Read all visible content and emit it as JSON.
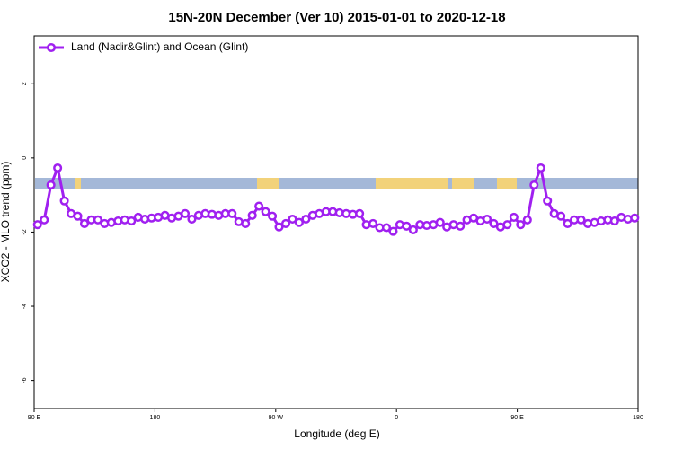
{
  "chart_data": {
    "type": "line",
    "title": "15N-20N December (Ver 10)   2015-01-01 to 2020-12-18",
    "xlabel": "Longitude (deg E)",
    "ylabel": "XCO2 - MLO trend (ppm)",
    "xlim": [
      90,
      540
    ],
    "xticks": [
      {
        "value": 90,
        "label": "90 E"
      },
      180,
      {
        "value": 270,
        "label": "90 W"
      },
      {
        "value": 360,
        "label": "0"
      },
      {
        "value": 450,
        "label": "90 E"
      },
      {
        "value": 540,
        "label": "180"
      }
    ],
    "ylim": [
      -6.76,
      3.29
    ],
    "yticks": [
      -6,
      -4,
      -2,
      0,
      2
    ],
    "legend": "top-left",
    "series": [
      {
        "name": "Land (Nadir&Glint) and Ocean (Glint)",
        "color": "#a020f0",
        "x": [
          92.5,
          97.5,
          102.5,
          107.5,
          112.5,
          117.5,
          122.5,
          127.5,
          132.5,
          137.5,
          142.5,
          147.5,
          152.5,
          157.5,
          162.5,
          167.5,
          172.5,
          177.5,
          182.5,
          187.5,
          192.5,
          197.5,
          202.5,
          207.5,
          212.5,
          217.5,
          222.5,
          227.5,
          232.5,
          237.5,
          242.5,
          247.5,
          252.5,
          257.5,
          262.5,
          267.5,
          272.5,
          277.5,
          282.5,
          287.5,
          292.5,
          297.5,
          302.5,
          307.5,
          312.5,
          317.5,
          322.5,
          327.5,
          332.5,
          337.5,
          342.5,
          347.5,
          352.5,
          357.5,
          362.5,
          367.5,
          372.5,
          377.5,
          382.5,
          387.5,
          392.5,
          397.5,
          402.5,
          407.5,
          412.5,
          417.5,
          422.5,
          427.5,
          432.5,
          437.5,
          442.5,
          447.5,
          452.5,
          457.5,
          462.5,
          467.5,
          472.5,
          477.5,
          482.5,
          487.5,
          492.5,
          497.5,
          502.5,
          507.5,
          512.5,
          517.5,
          522.5,
          527.5,
          532.5,
          537.5
        ],
        "values": [
          -1.8,
          -1.67,
          -0.73,
          -0.27,
          -1.16,
          -1.5,
          -1.57,
          -1.77,
          -1.67,
          -1.67,
          -1.77,
          -1.74,
          -1.7,
          -1.67,
          -1.7,
          -1.6,
          -1.65,
          -1.62,
          -1.6,
          -1.55,
          -1.62,
          -1.57,
          -1.5,
          -1.65,
          -1.55,
          -1.5,
          -1.52,
          -1.55,
          -1.5,
          -1.5,
          -1.72,
          -1.77,
          -1.55,
          -1.3,
          -1.45,
          -1.57,
          -1.86,
          -1.77,
          -1.65,
          -1.74,
          -1.65,
          -1.55,
          -1.5,
          -1.45,
          -1.45,
          -1.48,
          -1.5,
          -1.52,
          -1.5,
          -1.8,
          -1.77,
          -1.88,
          -1.88,
          -1.98,
          -1.8,
          -1.84,
          -1.94,
          -1.8,
          -1.82,
          -1.8,
          -1.74,
          -1.86,
          -1.8,
          -1.84,
          -1.67,
          -1.62,
          -1.7,
          -1.65,
          -1.77,
          -1.86,
          -1.8,
          -1.6,
          -1.8,
          -1.67,
          -0.73,
          -0.27,
          -1.16,
          -1.5,
          -1.57,
          -1.77,
          -1.67,
          -1.67,
          -1.77,
          -1.74,
          -1.7,
          -1.67,
          -1.7,
          -1.6,
          -1.65,
          -1.62
        ]
      }
    ]
  }
}
